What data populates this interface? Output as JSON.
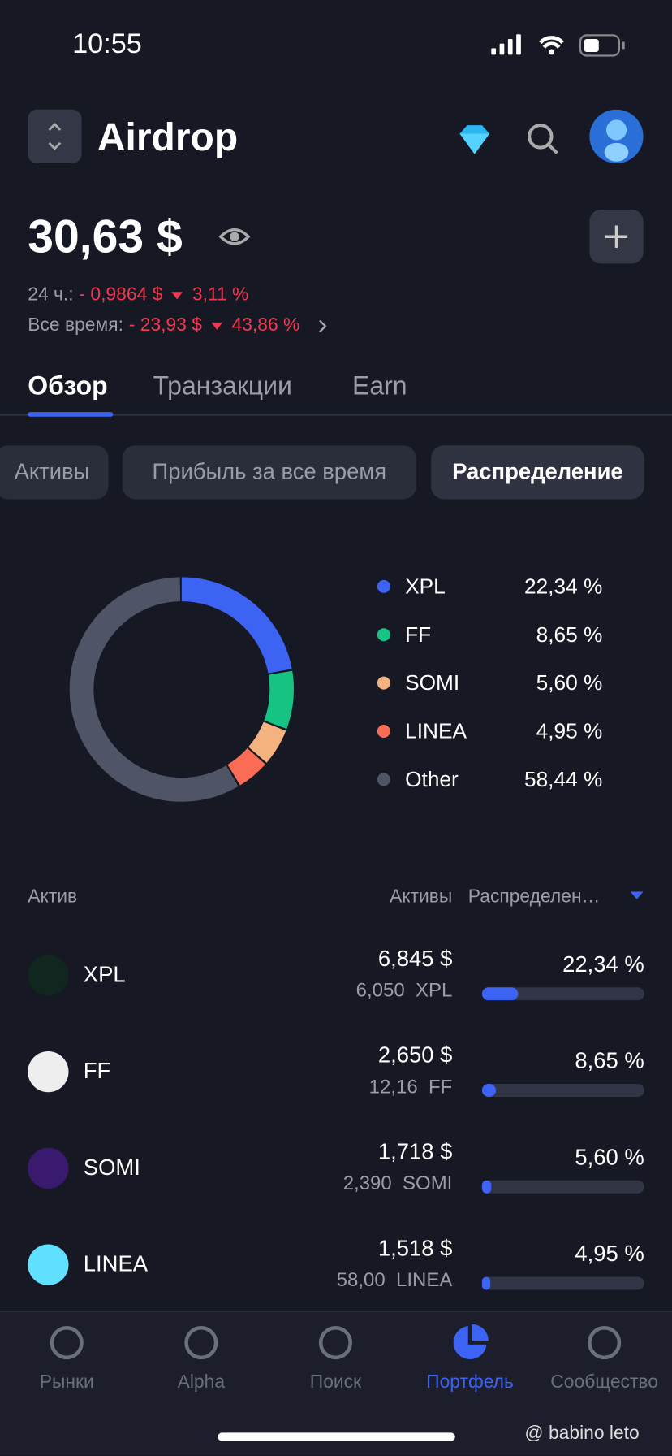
{
  "status": {
    "time": "10:55"
  },
  "header": {
    "title": "Airdrop"
  },
  "balance": {
    "amount": "30,63 $",
    "day_label": "24 ч.:",
    "day_change": "- 0,9864 $",
    "day_pct": "3,11 %",
    "all_label": "Все время:",
    "all_change": "- 23,93 $",
    "all_pct": "43,86 %"
  },
  "tabs": [
    "Обзор",
    "Транзакции",
    "Earn"
  ],
  "chips": [
    "Активы",
    "Прибыль за все время",
    "Распределение"
  ],
  "chart_data": {
    "type": "donut",
    "categories": [
      "XPL",
      "FF",
      "SOMI",
      "LINEA",
      "Other"
    ],
    "values": [
      22.34,
      8.65,
      5.6,
      4.95,
      58.44
    ],
    "value_labels": [
      "22,34 %",
      "8,65 %",
      "5,60 %",
      "4,95 %",
      "58,44 %"
    ],
    "colors": [
      "#3d63f5",
      "#17c383",
      "#f4b27f",
      "#fb6c55",
      "#4f5566"
    ]
  },
  "table": {
    "headers": [
      "Актив",
      "Активы",
      "Распределен…"
    ],
    "rows": [
      {
        "name": "XPL",
        "value": "6,845 $",
        "amount": "6,050  XPL",
        "share": "22,34 %"
      },
      {
        "name": "FF",
        "value": "2,650 $",
        "amount": "12,16  FF",
        "share": "8,65 %"
      },
      {
        "name": "SOMI",
        "value": "1,718 $",
        "amount": "2,390  SOMI",
        "share": "5,60 %"
      },
      {
        "name": "LINEA",
        "value": "1,518 $",
        "amount": "58,00  LINEA",
        "share": "4,95 %"
      }
    ]
  },
  "nav": [
    "Рынки",
    "Alpha",
    "Поиск",
    "Портфель",
    "Сообщество"
  ],
  "watermark": "@ babino leto"
}
